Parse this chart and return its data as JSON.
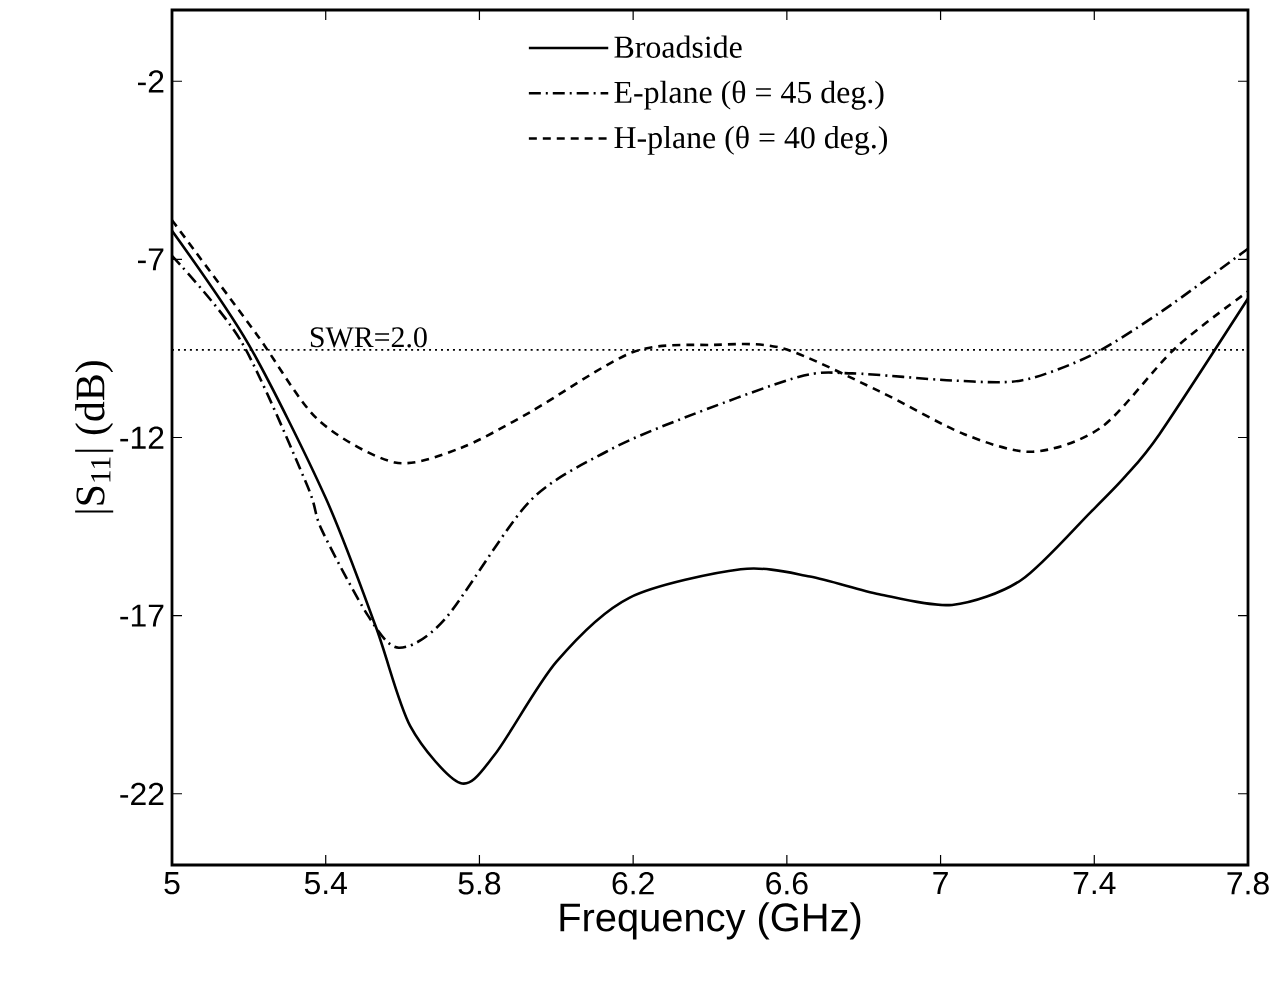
{
  "chart_data": {
    "type": "line",
    "xlabel": "Frequency (GHz)",
    "ylabel": "|S$_{11}$| (dB)",
    "xlim": [
      5,
      7.8
    ],
    "xticks": [
      5,
      5.4,
      5.8,
      6.2,
      6.6,
      7,
      7.4,
      7.8
    ],
    "ylim": [
      -24,
      0
    ],
    "yticks": [
      -2,
      -7,
      -12,
      -17,
      -22
    ],
    "legend": "top",
    "annotations": [
      "SWR=2.0"
    ],
    "grid": false,
    "series": [
      {
        "name": "Broadside",
        "color": "#000000",
        "line_style": "solid",
        "x": [
          5,
          5.2,
          5.4,
          5.53,
          5.62,
          5.75,
          5.84,
          6.0,
          6.19,
          6.48,
          6.66,
          6.84,
          7.03,
          7.21,
          7.39,
          7.48,
          7.57,
          7.8
        ],
        "values": [
          -6.2,
          -9.4,
          -13.7,
          -17.3,
          -20.1,
          -21.7,
          -20.9,
          -18.3,
          -16.5,
          -15.7,
          -15.9,
          -16.4,
          -16.7,
          -16.0,
          -14.1,
          -13.1,
          -11.9,
          -8.1
        ]
      },
      {
        "name": "E-plane (θ = 45 deg.)",
        "color": "#000000",
        "line_style": "dashdot",
        "x": [
          5,
          5.18,
          5.35,
          5.39,
          5.51,
          5.59,
          5.71,
          5.93,
          6.13,
          6.32,
          6.63,
          6.77,
          7.03,
          7.21,
          7.39,
          7.57,
          7.8
        ],
        "values": [
          -6.9,
          -9.3,
          -13.3,
          -14.6,
          -17.0,
          -17.9,
          -17.1,
          -13.8,
          -12.4,
          -11.5,
          -10.3,
          -10.2,
          -10.4,
          -10.4,
          -9.7,
          -8.5,
          -6.7
        ]
      },
      {
        "name": "H-plane (θ = 40 deg.)",
        "color": "#000000",
        "line_style": "dashed",
        "x": [
          5,
          5.22,
          5.38,
          5.58,
          5.75,
          5.93,
          6.2,
          6.41,
          6.59,
          6.84,
          7.06,
          7.24,
          7.42,
          7.61,
          7.8
        ],
        "values": [
          -5.9,
          -9.1,
          -11.5,
          -12.7,
          -12.3,
          -11.3,
          -9.6,
          -9.4,
          -9.5,
          -10.7,
          -11.9,
          -12.4,
          -11.7,
          -9.5,
          -7.9
        ]
      }
    ],
    "ref_lines": [
      {
        "axis": "y",
        "value": -9.54,
        "line_style": "dotted",
        "color": "#000000"
      }
    ]
  }
}
